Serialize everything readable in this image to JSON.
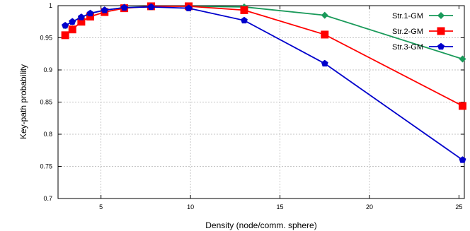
{
  "chart_data": {
    "type": "line",
    "title": "",
    "xlabel": "Density (node/comm. sphere)",
    "ylabel": "Key-path probability",
    "xlim": [
      3,
      25
    ],
    "ylim": [
      0.7,
      1.0
    ],
    "x_ticks": [
      5,
      10,
      15,
      20,
      25
    ],
    "x_tick_labels": [
      "5",
      "10",
      "15",
      "20",
      "25"
    ],
    "y_ticks": [
      0.7,
      0.75,
      0.8,
      0.85,
      0.9,
      0.95,
      1.0
    ],
    "y_tick_labels": [
      "0.7",
      "0.75",
      "0.8",
      "0.85",
      "0.9",
      "0.95",
      "1"
    ],
    "grid": true,
    "legend_position": "top-right",
    "series": [
      {
        "name": "Str.1-GM",
        "color": "#1a9a5a",
        "marker": "diamond",
        "x": [
          3,
          3.4,
          3.9,
          4.4,
          5.2,
          6.3,
          7.8,
          9.9,
          13,
          17.5,
          25.2
        ],
        "y": [
          0.969,
          0.975,
          0.982,
          0.988,
          0.993,
          0.997,
          0.999,
          0.999,
          0.998,
          0.985,
          0.917
        ]
      },
      {
        "name": "Str.2-GM",
        "color": "#ff0000",
        "marker": "square",
        "x": [
          3,
          3.4,
          3.9,
          4.4,
          5.2,
          6.3,
          7.8,
          9.9,
          13,
          17.5,
          25.2
        ],
        "y": [
          0.954,
          0.963,
          0.975,
          0.983,
          0.99,
          0.996,
          0.999,
          0.999,
          0.993,
          0.955,
          0.844
        ]
      },
      {
        "name": "Str.3-GM",
        "color": "#0000cc",
        "marker": "pentagon",
        "x": [
          3,
          3.4,
          3.9,
          4.4,
          5.2,
          6.3,
          7.8,
          9.9,
          13,
          17.5,
          25.2
        ],
        "y": [
          0.969,
          0.975,
          0.982,
          0.988,
          0.993,
          0.997,
          0.998,
          0.996,
          0.977,
          0.91,
          0.76
        ]
      }
    ]
  }
}
